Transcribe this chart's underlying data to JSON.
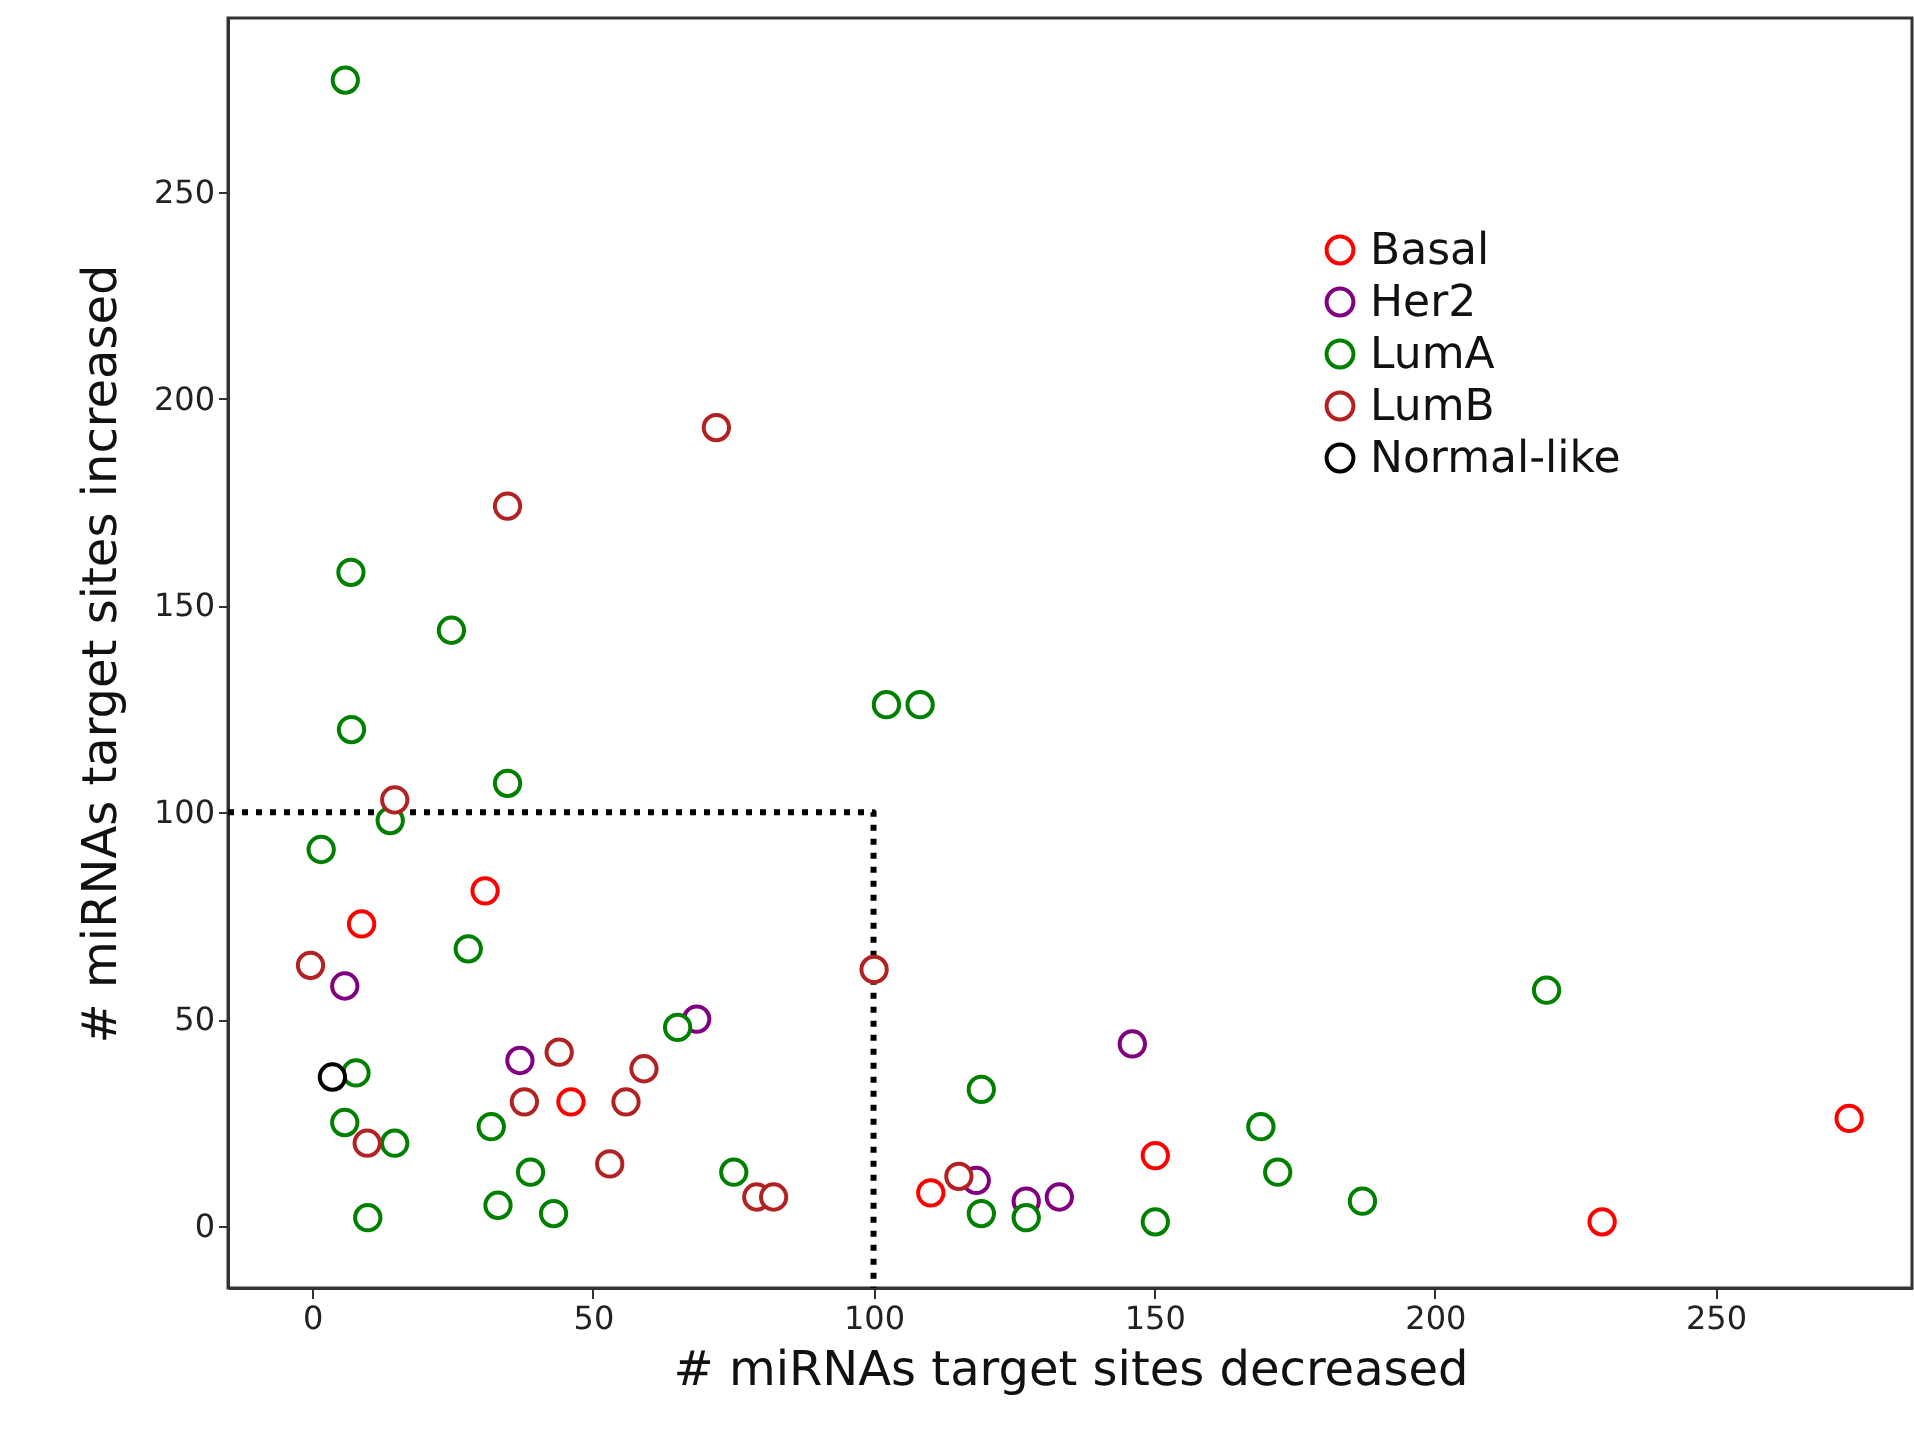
{
  "chart_data": {
    "type": "scatter",
    "xlabel": "# miRNAs target sites decreased",
    "ylabel": "# miRNAs target sites increased",
    "xlim": [
      -15,
      285
    ],
    "ylim": [
      -15,
      292
    ],
    "xticks": [
      0,
      50,
      100,
      150,
      200,
      250
    ],
    "yticks": [
      0,
      50,
      100,
      150,
      200,
      250
    ],
    "grid": false,
    "legend": "top right",
    "marker": "circle",
    "series": [
      {
        "type": "line",
        "color": "#000000",
        "line_style": "dotted",
        "marker": "none",
        "x": [
          -15,
          100,
          100
        ],
        "values": [
          100,
          100,
          -15
        ]
      },
      {
        "name": "Basal",
        "color": "#ff0000",
        "x": [
          30.8,
          8.8,
          46.1,
          273.8,
          150.2,
          110.2,
          229.8
        ],
        "values": [
          81,
          73,
          30,
          26,
          17,
          8,
          1
        ]
      },
      {
        "name": "Her2",
        "color": "#800080",
        "x": [
          5.8,
          68.5,
          37,
          146.1,
          118.3,
          127.2,
          133.1
        ],
        "values": [
          58,
          50,
          40,
          44,
          11,
          6,
          7
        ]
      },
      {
        "name": "LumA",
        "color": "#008000",
        "x": [
          5.9,
          6.9,
          24.8,
          7,
          34.8,
          13.9,
          1.6,
          27.8,
          65.1,
          7.8,
          5.8,
          14.7,
          31.9,
          38.9,
          75.1,
          33.1,
          43,
          9.9,
          102.3,
          108.3,
          219.9,
          119.2,
          169,
          172,
          119.2,
          127.2,
          150.2,
          187.1
        ],
        "values": [
          277,
          158,
          144,
          120,
          107,
          98,
          91,
          67,
          48,
          37,
          25,
          20,
          24,
          13,
          13,
          5,
          3,
          2,
          126,
          126,
          57,
          33,
          24,
          13,
          3,
          2,
          1,
          6
        ]
      },
      {
        "name": "LumB",
        "color": "#b22222",
        "x": [
          72,
          34.8,
          14.7,
          -0.3,
          100.1,
          44,
          59.1,
          37.8,
          55.9,
          9.8,
          53,
          79.2,
          82.2,
          115.2
        ],
        "values": [
          193,
          174,
          103,
          63,
          62,
          42,
          38,
          30,
          30,
          20,
          15,
          7,
          7,
          12
        ]
      },
      {
        "name": "Normal-like",
        "color": "#000000",
        "x": [
          3.6
        ],
        "values": [
          36
        ]
      }
    ]
  }
}
